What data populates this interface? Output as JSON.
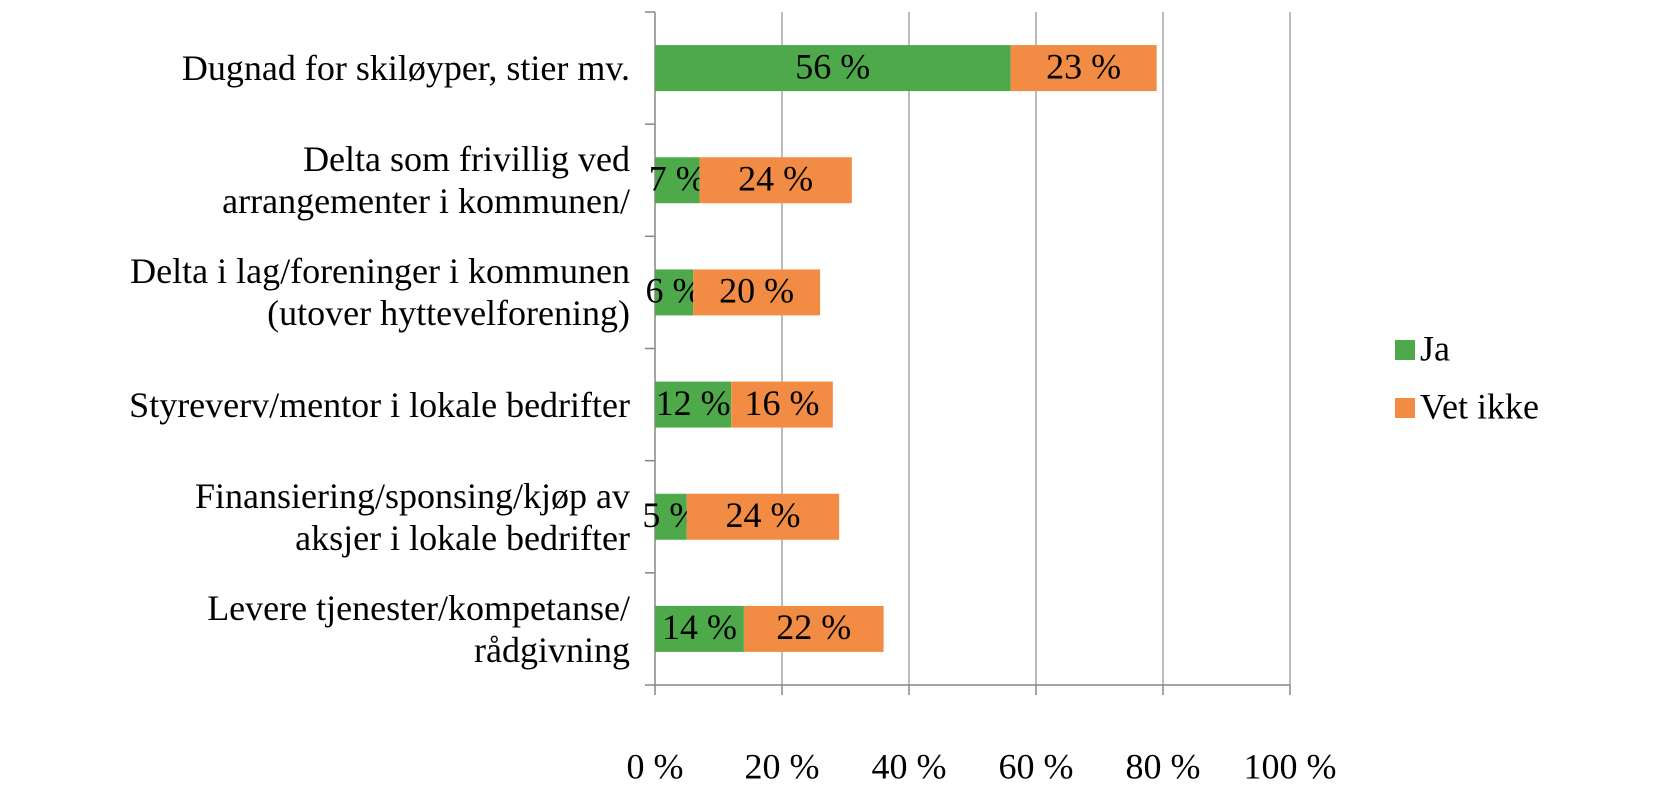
{
  "chart_data": {
    "type": "stacked_barh",
    "categories": [
      "Dugnad for skiløyper, stier mv.",
      "Delta som frivillig ved\narrangementer i kommunen/",
      "Delta i lag/foreninger i kommunen\n(utover hyttevelforening)",
      "Styreverv/mentor i lokale bedrifter",
      "Finansiering/sponsing/kjøp av\naksjer i lokale bedrifter",
      "Levere tjenester/kompetanse/\nrådgivning"
    ],
    "series": [
      {
        "name": "Ja",
        "color": "#4ea94b",
        "values": [
          56,
          7,
          6,
          12,
          5,
          14
        ],
        "value_labels": [
          "56 %",
          "7 %",
          "6 %",
          "12 %",
          "5 %",
          "14 %"
        ]
      },
      {
        "name": "Vet ikke",
        "color": "#f28c45",
        "values": [
          23,
          24,
          20,
          16,
          24,
          22
        ],
        "value_labels": [
          "23 %",
          "24 %",
          "20 %",
          "16 %",
          "24 %",
          "22 %"
        ]
      }
    ],
    "xlim": [
      0,
      100
    ],
    "xticks": [
      {
        "value": 0,
        "label": "0 %"
      },
      {
        "value": 20,
        "label": "20 %"
      },
      {
        "value": 40,
        "label": "40 %"
      },
      {
        "value": 60,
        "label": "60 %"
      },
      {
        "value": 80,
        "label": "80 %"
      },
      {
        "value": 100,
        "label": "100 %"
      }
    ],
    "grid": true,
    "legend": "right"
  }
}
